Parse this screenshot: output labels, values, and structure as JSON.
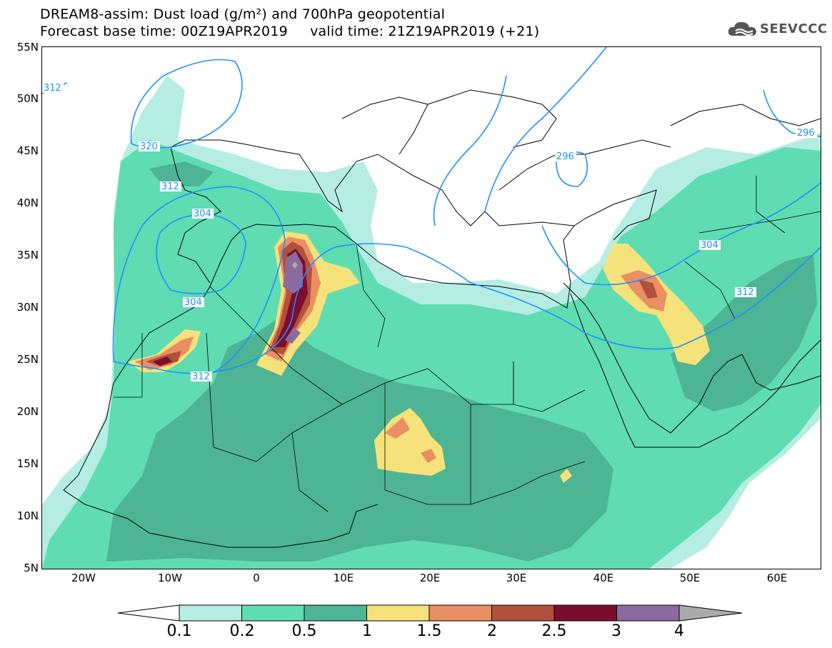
{
  "header": {
    "title_line1": "DREAM8-assim: Dust load (g/m²) and 700hPa geopotential",
    "title_line2": "Forecast base time: 00Z19APR2019     valid time: 21Z19APR2019 (+21)"
  },
  "logo": {
    "text": "SEEVCCC",
    "icon": "cloud-icon"
  },
  "axes": {
    "latitudes": [
      "55N",
      "50N",
      "45N",
      "40N",
      "35N",
      "30N",
      "25N",
      "20N",
      "15N",
      "10N",
      "5N"
    ],
    "longitudes": [
      "20W",
      "10W",
      "0",
      "10E",
      "20E",
      "30E",
      "40E",
      "50E",
      "60E"
    ]
  },
  "contours": {
    "color": "#1e90ff",
    "labels": [
      "312",
      "320",
      "312",
      "304",
      "304",
      "312",
      "296",
      "296",
      "304",
      "312"
    ]
  },
  "legend": {
    "ticks": [
      "0.1",
      "0.2",
      "0.5",
      "1",
      "1.5",
      "2",
      "2.5",
      "3",
      "4"
    ],
    "colors": [
      "#b5ede3",
      "#5fdcb2",
      "#4db494",
      "#f5e27a",
      "#ea8e63",
      "#b1513d",
      "#7b0d2d",
      "#8c6a9e",
      "#aaaaaa"
    ]
  }
}
